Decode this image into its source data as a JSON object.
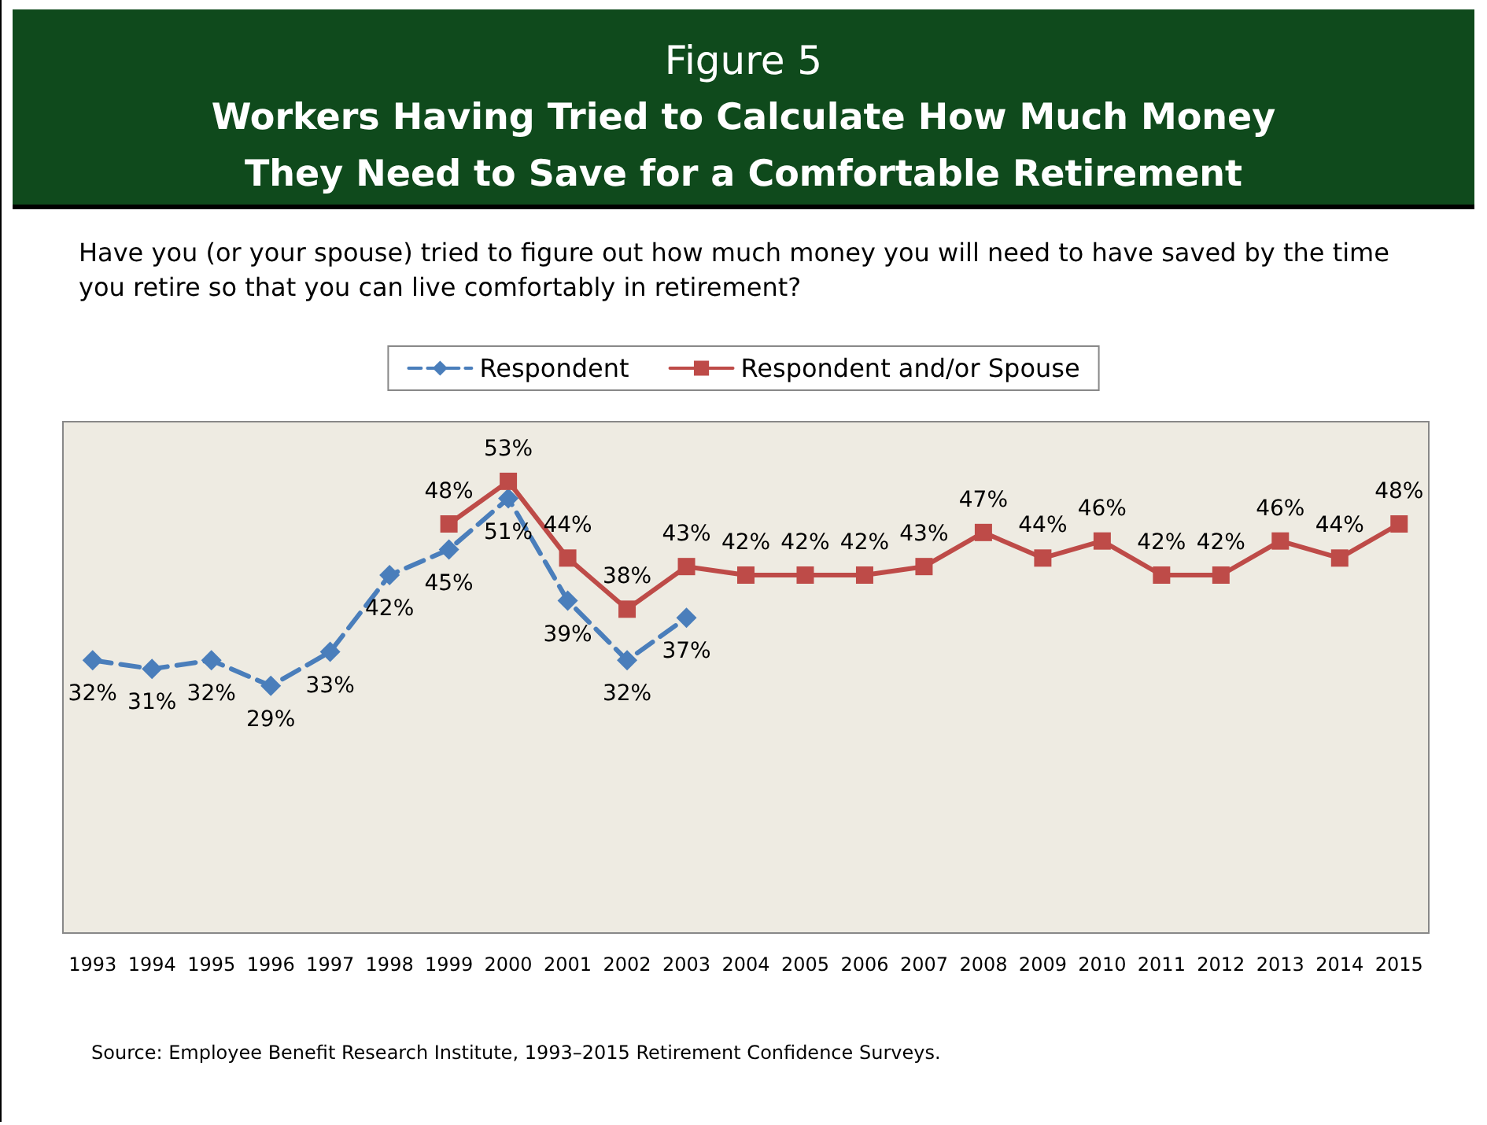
{
  "chart_data": {
    "type": "line",
    "title": "Workers Having Tried to Calculate How Much Money They Need to Save for a Comfortable Retirement",
    "subtitle": "Have you (or your spouse) tried to figure out how much money you will need to have saved by the time you retire so that you can live comfortably in retirement?",
    "annotations": [
      "Figure 5",
      "Source:  Employee Benefit Research Institute, 1993–2015 Retirement Confidence Surveys."
    ],
    "categories": [
      "1993",
      "1994",
      "1995",
      "1996",
      "1997",
      "1998",
      "1999",
      "2000",
      "2001",
      "2002",
      "2003",
      "2004",
      "2005",
      "2006",
      "2007",
      "2008",
      "2009",
      "2010",
      "2011",
      "2012",
      "2013",
      "2014",
      "2015"
    ],
    "series": [
      {
        "name": "Respondent",
        "color": "#4a7ebb",
        "marker": "diamond",
        "line_style": "dashed",
        "values": [
          32,
          31,
          32,
          29,
          33,
          42,
          45,
          51,
          39,
          32,
          37,
          null,
          null,
          null,
          null,
          null,
          null,
          null,
          null,
          null,
          null,
          null,
          null
        ],
        "value_labels": [
          "32%",
          "31%",
          "32%",
          "29%",
          "33%",
          "42%",
          "45%",
          "51%",
          "39%",
          "32%",
          "37%",
          null,
          null,
          null,
          null,
          null,
          null,
          null,
          null,
          null,
          null,
          null,
          null
        ]
      },
      {
        "name": "Respondent and/or Spouse",
        "color": "#be4b48",
        "marker": "square",
        "line_style": "solid",
        "values": [
          null,
          null,
          null,
          null,
          null,
          null,
          48,
          53,
          44,
          38,
          43,
          42,
          42,
          42,
          43,
          47,
          44,
          46,
          42,
          42,
          46,
          44,
          48
        ],
        "value_labels": [
          null,
          null,
          null,
          null,
          null,
          null,
          "48%",
          "53%",
          "44%",
          "38%",
          "43%",
          "42%",
          "42%",
          "42%",
          "43%",
          "47%",
          "44%",
          "46%",
          "42%",
          "42%",
          "46%",
          "44%",
          "48%"
        ]
      }
    ],
    "tick_labels": "x",
    "legend": "top"
  }
}
